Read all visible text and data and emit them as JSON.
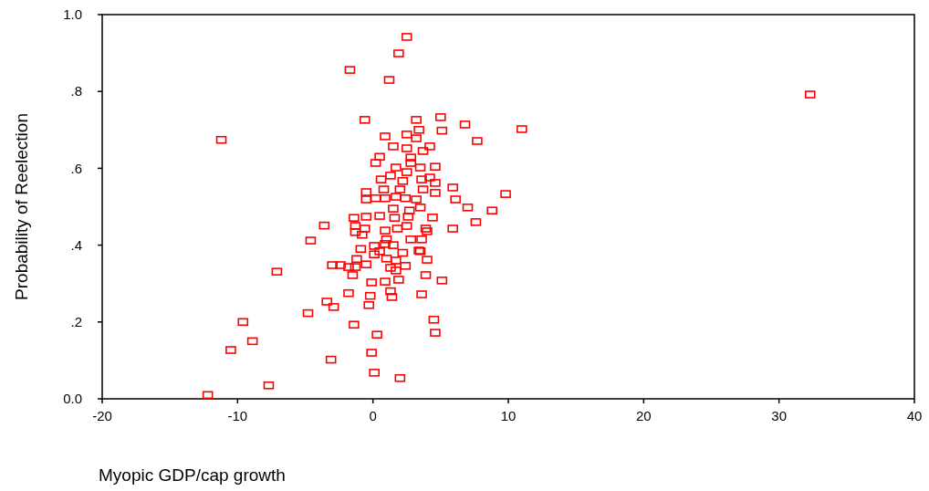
{
  "chart_data": {
    "type": "scatter",
    "xlabel": "Myopic GDP/cap growth",
    "ylabel": "Probability of Reelection",
    "marker": "square",
    "grid": false,
    "xlim": [
      -20,
      40
    ],
    "xticks": [
      -20,
      -10,
      0,
      10,
      20,
      30,
      40
    ],
    "ylim": [
      0,
      1
    ],
    "yticks": [
      {
        "value": 0,
        "label": "0.0"
      },
      {
        "value": 0.2,
        "label": ".2"
      },
      {
        "value": 0.4,
        "label": ".4"
      },
      {
        "value": 0.6,
        "label": ".6"
      },
      {
        "value": 0.8,
        "label": ".8"
      },
      {
        "value": 1,
        "label": "1.0"
      }
    ],
    "series": [
      {
        "color": "#ff0000",
        "x": [
          -12.2,
          -7.7,
          -8.9,
          -10.5,
          -9.6,
          -11.2,
          -7.1,
          -4.6,
          -3.6,
          -4.8,
          -3.4,
          -2.9,
          -3.1,
          -1.8,
          -1.7,
          -1.4,
          -3.0,
          -2.4,
          -1.8,
          -1.3,
          -1.5,
          -1.2,
          -0.5,
          0.1,
          -0.9,
          0.5,
          1.0,
          1.3,
          1.7,
          2.4,
          1.7,
          2.2,
          0.9,
          1.5,
          2.8,
          3.6,
          -0.2,
          -0.3,
          0.3,
          -0.1,
          0.1,
          2.0,
          1.3,
          1.4,
          -0.1,
          0.9,
          1.9,
          2.5,
          1.9,
          1.2,
          32.3,
          -0.6,
          5.0,
          3.2,
          6.8,
          11.0,
          5.1,
          7.7,
          0.9,
          2.5,
          3.4,
          3.2,
          1.5,
          2.5,
          4.2,
          3.7,
          0.5,
          0.2,
          2.8,
          2.8,
          4.6,
          1.7,
          3.5,
          1.3,
          2.5,
          0.6,
          2.2,
          3.6,
          4.2,
          4.6,
          5.9,
          0.8,
          2.0,
          3.7,
          4.6,
          -0.5,
          -0.5,
          0.2,
          0.9,
          1.7,
          2.4,
          3.2,
          6.1,
          9.8,
          7.0,
          8.8,
          7.6,
          1.5,
          2.7,
          3.5,
          -1.4,
          -0.5,
          0.5,
          1.6,
          2.6,
          4.4,
          5.9,
          -1.3,
          -0.6,
          -1.3,
          -0.8,
          0.9,
          1.8,
          2.5,
          3.9,
          4.0,
          1.0,
          0.1,
          3.4,
          3.5,
          4.0,
          3.9,
          5.1,
          3.6,
          4.5,
          4.6
        ],
        "values": [
          0.01,
          0.035,
          0.15,
          0.127,
          0.2,
          0.674,
          0.331,
          0.412,
          0.451,
          0.223,
          0.253,
          0.239,
          0.102,
          0.275,
          0.856,
          0.193,
          0.348,
          0.348,
          0.343,
          0.343,
          0.322,
          0.364,
          0.35,
          0.376,
          0.39,
          0.384,
          0.365,
          0.341,
          0.334,
          0.346,
          0.36,
          0.38,
          0.403,
          0.4,
          0.415,
          0.415,
          0.268,
          0.244,
          0.167,
          0.12,
          0.068,
          0.054,
          0.28,
          0.265,
          0.303,
          0.305,
          0.31,
          0.942,
          0.899,
          0.83,
          0.792,
          0.726,
          0.733,
          0.726,
          0.714,
          0.702,
          0.698,
          0.671,
          0.683,
          0.688,
          0.7,
          0.678,
          0.657,
          0.652,
          0.657,
          0.645,
          0.63,
          0.614,
          0.628,
          0.614,
          0.604,
          0.602,
          0.602,
          0.581,
          0.59,
          0.571,
          0.567,
          0.571,
          0.576,
          0.562,
          0.55,
          0.545,
          0.545,
          0.545,
          0.536,
          0.538,
          0.519,
          0.522,
          0.522,
          0.526,
          0.522,
          0.519,
          0.519,
          0.533,
          0.498,
          0.49,
          0.46,
          0.495,
          0.49,
          0.498,
          0.471,
          0.474,
          0.476,
          0.471,
          0.474,
          0.472,
          0.443,
          0.45,
          0.443,
          0.434,
          0.427,
          0.438,
          0.443,
          0.45,
          0.443,
          0.436,
          0.415,
          0.398,
          0.386,
          0.384,
          0.362,
          0.322,
          0.308,
          0.272,
          0.206,
          0.172
        ]
      }
    ]
  }
}
